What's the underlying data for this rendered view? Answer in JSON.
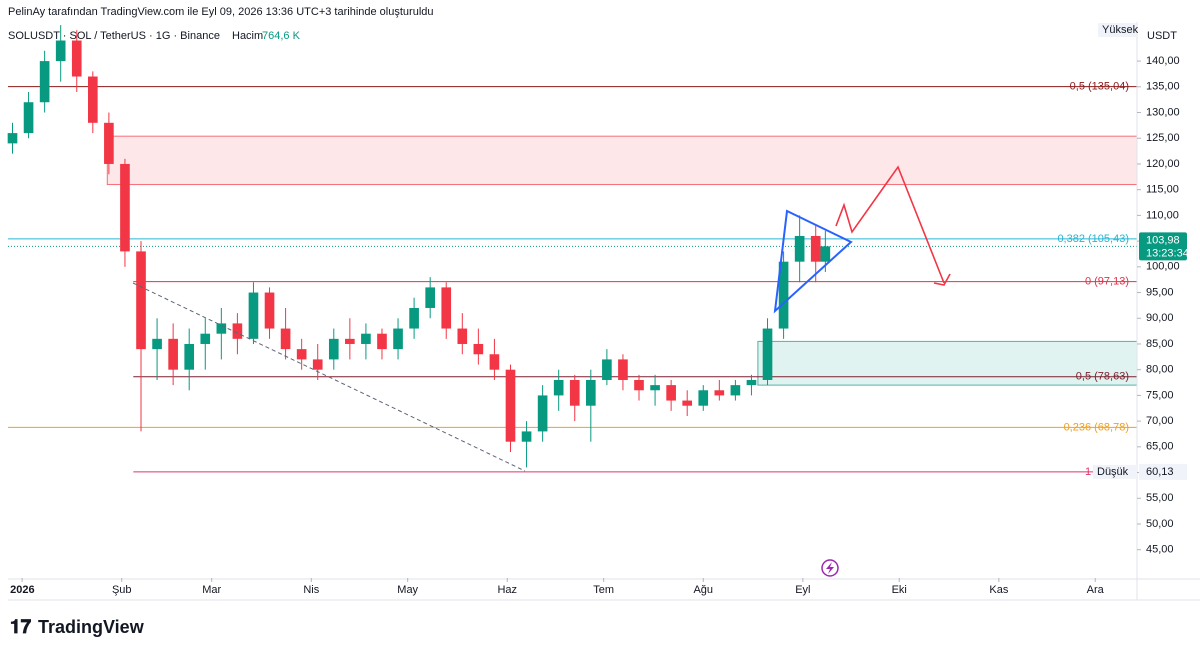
{
  "chart_data": {
    "type": "candlestick",
    "title": "PelinAy tarafından TradingView.com ile Eyl 09, 2026 13:36 UTC+3 tarihinde oluşturuldu",
    "symbol": "SOLUSDT · SOL / TetherUS · 1G · Binance",
    "volume_name": "Hacim",
    "volume_label": "764,6 K",
    "currency": "USDT",
    "brand": "TradingView",
    "up_color": "#089981",
    "down_color": "#f23645",
    "x": [
      -3,
      2,
      7,
      12,
      17,
      22,
      27,
      32,
      37,
      42,
      47,
      52,
      57,
      62,
      67,
      72,
      77,
      82,
      87,
      92,
      97,
      102,
      107,
      112,
      117,
      122,
      127,
      132,
      137,
      142,
      147,
      152,
      157,
      162,
      167,
      172,
      177,
      182,
      187,
      192,
      197,
      202,
      207,
      212,
      217,
      222,
      227,
      232,
      237,
      242,
      247,
      250
    ],
    "open": [
      124,
      126,
      132,
      140,
      144,
      137,
      128,
      120,
      103,
      84,
      86,
      80,
      85,
      87,
      89,
      86,
      95,
      88,
      84,
      82,
      82,
      86,
      85,
      87,
      84,
      88,
      92,
      96,
      88,
      85,
      83,
      80,
      66,
      68,
      75,
      78,
      73,
      78,
      82,
      78,
      76,
      77,
      74,
      73,
      76,
      75,
      77,
      78,
      88,
      101,
      106,
      101
    ],
    "high": [
      128,
      134,
      142,
      147,
      146,
      138,
      130,
      121,
      105,
      90,
      89,
      88,
      90,
      92,
      91,
      97,
      96,
      92,
      86,
      85,
      88,
      90,
      89,
      88,
      90,
      94,
      98,
      97,
      91,
      88,
      86,
      81,
      70,
      77,
      80,
      79,
      80,
      84,
      83,
      79,
      79,
      78,
      76,
      77,
      78,
      78,
      79,
      90,
      103,
      110,
      108,
      107
    ],
    "low": [
      122,
      125,
      130,
      136,
      134,
      126,
      118,
      100,
      68,
      78,
      77,
      76,
      80,
      82,
      83,
      85,
      86,
      82,
      80,
      78,
      80,
      82,
      82,
      82,
      82,
      86,
      90,
      86,
      83,
      81,
      78,
      64,
      61,
      66,
      72,
      70,
      66,
      77,
      76,
      74,
      73,
      72,
      71,
      72,
      74,
      74,
      75,
      77,
      86,
      97,
      97,
      99
    ],
    "close": [
      126,
      132,
      140,
      144,
      137,
      128,
      120,
      103,
      84,
      86,
      80,
      85,
      87,
      89,
      86,
      95,
      88,
      84,
      82,
      80,
      86,
      85,
      87,
      84,
      88,
      92,
      96,
      88,
      85,
      83,
      80,
      66,
      68,
      75,
      78,
      73,
      78,
      82,
      78,
      76,
      77,
      74,
      73,
      76,
      75,
      77,
      78,
      88,
      101,
      106,
      101,
      103.98
    ],
    "xlim": [
      -4.4,
      347
    ],
    "xticks": [
      {
        "value": 0,
        "label": "2026"
      },
      {
        "value": 31,
        "label": "Şub"
      },
      {
        "value": 59,
        "label": "Mar"
      },
      {
        "value": 90,
        "label": "Nis"
      },
      {
        "value": 120,
        "label": "May"
      },
      {
        "value": 151,
        "label": "Haz"
      },
      {
        "value": 181,
        "label": "Tem"
      },
      {
        "value": 212,
        "label": "Ağu"
      },
      {
        "value": 243,
        "label": "Eyl"
      },
      {
        "value": 273,
        "label": "Eki"
      },
      {
        "value": 304,
        "label": "Kas"
      },
      {
        "value": 334,
        "label": "Ara"
      }
    ],
    "ylim": [
      39.5,
      147.6
    ],
    "yticks": [
      {
        "value": 45,
        "label": "45,00"
      },
      {
        "value": 50,
        "label": "50,00"
      },
      {
        "value": 55,
        "label": "55,00"
      },
      {
        "value": 60,
        "label": "60,00"
      },
      {
        "value": 65,
        "label": "65,00"
      },
      {
        "value": 70,
        "label": "70,00"
      },
      {
        "value": 75,
        "label": "75,00"
      },
      {
        "value": 80,
        "label": "80,00"
      },
      {
        "value": 85,
        "label": "85,00"
      },
      {
        "value": 90,
        "label": "90,00"
      },
      {
        "value": 95,
        "label": "95,00"
      },
      {
        "value": 100,
        "label": "100,00"
      },
      {
        "value": 105,
        "label": "105,00"
      },
      {
        "value": 110,
        "label": "110,00"
      },
      {
        "value": 115,
        "label": "115,00"
      },
      {
        "value": 120,
        "label": "120,00"
      },
      {
        "value": 125,
        "label": "125,00"
      },
      {
        "value": 130,
        "label": "130,00"
      },
      {
        "value": 135,
        "label": "135,00"
      },
      {
        "value": 140,
        "label": "140,00"
      }
    ],
    "levels": [
      {
        "value": 135.04,
        "label": "0,5 (135,04)",
        "color": "#8b1a1a",
        "start": -4.4
      },
      {
        "value": 105.43,
        "label": "0,382 (105,43)",
        "color": "#26b6d2",
        "start": -4.4
      },
      {
        "value": 97.13,
        "label": "0 (97,13)",
        "color": "#e0334a",
        "start": 34.6
      },
      {
        "value": 78.63,
        "label": "0,5 (78,63)",
        "color": "#7b1f2e",
        "start": 34.6
      },
      {
        "value": 68.78,
        "label": "0,236 (68,78)",
        "color": "#f0a020",
        "start": -4.4
      },
      {
        "value": 60.13,
        "label": "1 (60,13)",
        "color": "#e0336a",
        "start": 34.6
      }
    ],
    "zones": [
      {
        "low": 116,
        "high": 125.4,
        "start": 26.5,
        "color": "#f23645"
      },
      {
        "low": 77,
        "high": 85.5,
        "start": 229,
        "color": "#089981"
      }
    ],
    "high_label": "Yüksek",
    "low_label": {
      "text": "Düşük",
      "value": 60.13,
      "label": "60,13"
    },
    "last_price": {
      "value": 103.98,
      "label": "103,98"
    },
    "countdown": "13:23:34"
  }
}
